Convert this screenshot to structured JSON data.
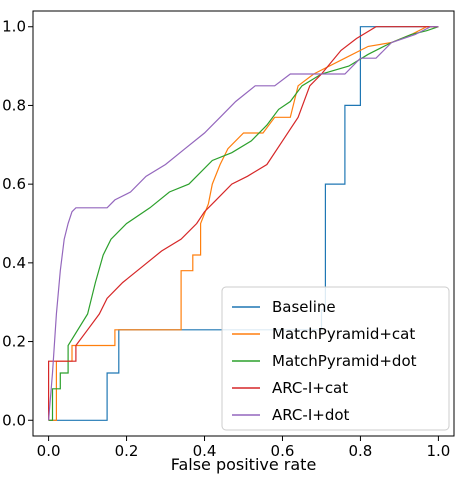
{
  "chart_data": {
    "type": "line",
    "title": "",
    "xlabel": "False positive rate",
    "ylabel": "",
    "xlim": [
      -0.04,
      1.04
    ],
    "ylim": [
      -0.04,
      1.04
    ],
    "xticks": [
      "0.0",
      "0.2",
      "0.4",
      "0.6",
      "0.8",
      "1.0"
    ],
    "yticks": [
      "0.0",
      "0.2",
      "0.4",
      "0.6",
      "0.8",
      "1.0"
    ],
    "grid": false,
    "legend_position": "bottom-right",
    "series": [
      {
        "name": "Baseline",
        "color": "#1f77b4",
        "points": [
          [
            0,
            0
          ],
          [
            0.15,
            0
          ],
          [
            0.15,
            0.12
          ],
          [
            0.18,
            0.12
          ],
          [
            0.18,
            0.23
          ],
          [
            0.7,
            0.23
          ],
          [
            0.7,
            0.28
          ],
          [
            0.71,
            0.28
          ],
          [
            0.71,
            0.6
          ],
          [
            0.76,
            0.6
          ],
          [
            0.76,
            0.8
          ],
          [
            0.8,
            0.8
          ],
          [
            0.8,
            1.0
          ],
          [
            1.0,
            1.0
          ]
        ]
      },
      {
        "name": "MatchPyramid+cat",
        "color": "#ff7f0e",
        "points": [
          [
            0,
            0
          ],
          [
            0.02,
            0
          ],
          [
            0.02,
            0.15
          ],
          [
            0.06,
            0.15
          ],
          [
            0.06,
            0.19
          ],
          [
            0.17,
            0.19
          ],
          [
            0.17,
            0.23
          ],
          [
            0.34,
            0.23
          ],
          [
            0.34,
            0.38
          ],
          [
            0.37,
            0.38
          ],
          [
            0.37,
            0.42
          ],
          [
            0.39,
            0.42
          ],
          [
            0.39,
            0.5
          ],
          [
            0.41,
            0.55
          ],
          [
            0.42,
            0.6
          ],
          [
            0.44,
            0.65
          ],
          [
            0.46,
            0.69
          ],
          [
            0.5,
            0.73
          ],
          [
            0.55,
            0.73
          ],
          [
            0.58,
            0.77
          ],
          [
            0.62,
            0.77
          ],
          [
            0.64,
            0.85
          ],
          [
            0.68,
            0.88
          ],
          [
            0.76,
            0.92
          ],
          [
            0.82,
            0.95
          ],
          [
            0.88,
            0.96
          ],
          [
            0.93,
            0.98
          ],
          [
            0.97,
            1.0
          ],
          [
            1.0,
            1.0
          ]
        ]
      },
      {
        "name": "MatchPyramid+dot",
        "color": "#2ca02c",
        "points": [
          [
            0,
            0
          ],
          [
            0.01,
            0
          ],
          [
            0.01,
            0.08
          ],
          [
            0.03,
            0.08
          ],
          [
            0.03,
            0.12
          ],
          [
            0.05,
            0.12
          ],
          [
            0.05,
            0.19
          ],
          [
            0.1,
            0.27
          ],
          [
            0.12,
            0.35
          ],
          [
            0.14,
            0.42
          ],
          [
            0.16,
            0.46
          ],
          [
            0.2,
            0.5
          ],
          [
            0.26,
            0.54
          ],
          [
            0.31,
            0.58
          ],
          [
            0.36,
            0.6
          ],
          [
            0.42,
            0.66
          ],
          [
            0.47,
            0.68
          ],
          [
            0.52,
            0.71
          ],
          [
            0.56,
            0.75
          ],
          [
            0.59,
            0.79
          ],
          [
            0.62,
            0.81
          ],
          [
            0.65,
            0.85
          ],
          [
            0.7,
            0.88
          ],
          [
            0.77,
            0.9
          ],
          [
            0.82,
            0.93
          ],
          [
            0.88,
            0.96
          ],
          [
            0.93,
            0.98
          ],
          [
            0.97,
            0.99
          ],
          [
            1.0,
            1.0
          ]
        ]
      },
      {
        "name": "ARC-I+cat",
        "color": "#d62728",
        "points": [
          [
            0,
            0
          ],
          [
            0,
            0.15
          ],
          [
            0.07,
            0.15
          ],
          [
            0.07,
            0.19
          ],
          [
            0.1,
            0.23
          ],
          [
            0.13,
            0.27
          ],
          [
            0.15,
            0.31
          ],
          [
            0.19,
            0.35
          ],
          [
            0.24,
            0.39
          ],
          [
            0.29,
            0.43
          ],
          [
            0.34,
            0.46
          ],
          [
            0.38,
            0.5
          ],
          [
            0.4,
            0.53
          ],
          [
            0.43,
            0.56
          ],
          [
            0.47,
            0.6
          ],
          [
            0.51,
            0.62
          ],
          [
            0.56,
            0.65
          ],
          [
            0.6,
            0.71
          ],
          [
            0.64,
            0.77
          ],
          [
            0.67,
            0.85
          ],
          [
            0.7,
            0.88
          ],
          [
            0.75,
            0.94
          ],
          [
            0.79,
            0.97
          ],
          [
            0.84,
            1.0
          ],
          [
            1.0,
            1.0
          ]
        ]
      },
      {
        "name": "ARC-I+dot",
        "color": "#9467bd",
        "points": [
          [
            0,
            0
          ],
          [
            0.01,
            0.12
          ],
          [
            0.02,
            0.27
          ],
          [
            0.03,
            0.38
          ],
          [
            0.04,
            0.46
          ],
          [
            0.05,
            0.5
          ],
          [
            0.06,
            0.53
          ],
          [
            0.07,
            0.54
          ],
          [
            0.15,
            0.54
          ],
          [
            0.17,
            0.56
          ],
          [
            0.21,
            0.58
          ],
          [
            0.25,
            0.62
          ],
          [
            0.3,
            0.65
          ],
          [
            0.35,
            0.69
          ],
          [
            0.4,
            0.73
          ],
          [
            0.44,
            0.77
          ],
          [
            0.48,
            0.81
          ],
          [
            0.53,
            0.85
          ],
          [
            0.58,
            0.85
          ],
          [
            0.62,
            0.88
          ],
          [
            0.66,
            0.88
          ],
          [
            0.72,
            0.88
          ],
          [
            0.76,
            0.88
          ],
          [
            0.8,
            0.92
          ],
          [
            0.84,
            0.92
          ],
          [
            0.88,
            0.96
          ],
          [
            0.94,
            0.98
          ],
          [
            0.98,
            1.0
          ],
          [
            1.0,
            1.0
          ]
        ]
      }
    ]
  }
}
